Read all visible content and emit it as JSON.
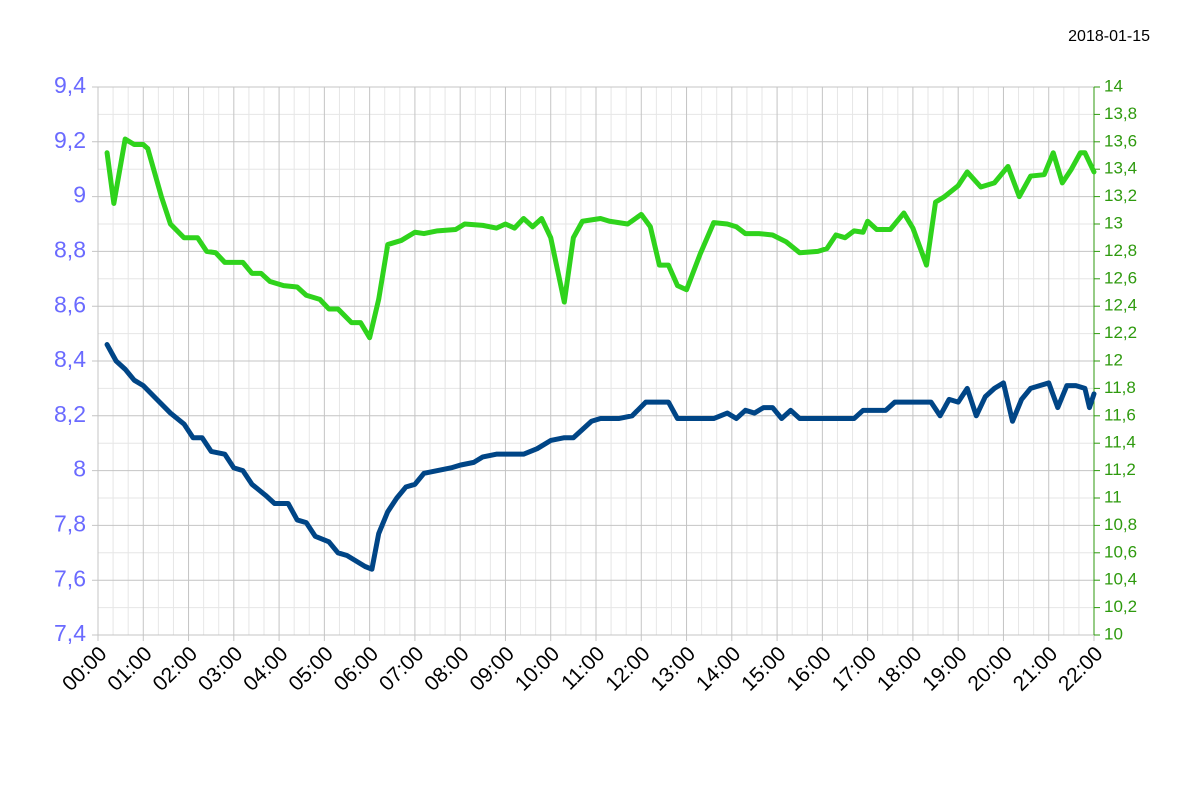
{
  "chart_data": {
    "type": "line",
    "title": "2018-01-15",
    "xlim": [
      0,
      22
    ],
    "xticks": [
      {
        "value": 0,
        "label": "00:00"
      },
      {
        "value": 1,
        "label": "01:00"
      },
      {
        "value": 2,
        "label": "02:00"
      },
      {
        "value": 3,
        "label": "03:00"
      },
      {
        "value": 4,
        "label": "04:00"
      },
      {
        "value": 5,
        "label": "05:00"
      },
      {
        "value": 6,
        "label": "06:00"
      },
      {
        "value": 7,
        "label": "07:00"
      },
      {
        "value": 8,
        "label": "08:00"
      },
      {
        "value": 9,
        "label": "09:00"
      },
      {
        "value": 10,
        "label": "10:00"
      },
      {
        "value": 11,
        "label": "11:00"
      },
      {
        "value": 12,
        "label": "12:00"
      },
      {
        "value": 13,
        "label": "13:00"
      },
      {
        "value": 14,
        "label": "14:00"
      },
      {
        "value": 15,
        "label": "15:00"
      },
      {
        "value": 16,
        "label": "16:00"
      },
      {
        "value": 17,
        "label": "17:00"
      },
      {
        "value": 18,
        "label": "18:00"
      },
      {
        "value": 19,
        "label": "19:00"
      },
      {
        "value": 20,
        "label": "20:00"
      },
      {
        "value": 21,
        "label": "21:00"
      },
      {
        "value": 22,
        "label": "22:00"
      }
    ],
    "ylim": [
      7.4,
      9.4
    ],
    "yticks": [
      {
        "value": 7.4,
        "label": "7,4"
      },
      {
        "value": 7.6,
        "label": "7,6"
      },
      {
        "value": 7.8,
        "label": "7,8"
      },
      8,
      {
        "value": 8.2,
        "label": "8,2"
      },
      {
        "value": 8.4,
        "label": "8,4"
      },
      {
        "value": 8.6,
        "label": "8,6"
      },
      {
        "value": 8.8,
        "label": "8,8"
      },
      9,
      {
        "value": 9.2,
        "label": "9,2"
      },
      {
        "value": 9.4,
        "label": "9,4"
      }
    ],
    "y2lim": [
      10,
      14
    ],
    "y2ticks": [
      10,
      {
        "value": 10.2,
        "label": "10,2"
      },
      {
        "value": 10.4,
        "label": "10,4"
      },
      {
        "value": 10.6,
        "label": "10,6"
      },
      {
        "value": 10.8,
        "label": "10,8"
      },
      11,
      {
        "value": 11.2,
        "label": "11,2"
      },
      {
        "value": 11.4,
        "label": "11,4"
      },
      {
        "value": 11.6,
        "label": "11,6"
      },
      {
        "value": 11.8,
        "label": "11,8"
      },
      12,
      {
        "value": 12.2,
        "label": "12,2"
      },
      {
        "value": 12.4,
        "label": "12,4"
      },
      {
        "value": 12.6,
        "label": "12,6"
      },
      {
        "value": 12.8,
        "label": "12,8"
      },
      13,
      {
        "value": 13.2,
        "label": "13,2"
      },
      {
        "value": 13.4,
        "label": "13,4"
      },
      {
        "value": 13.6,
        "label": "13,6"
      },
      {
        "value": 13.8,
        "label": "13,8"
      },
      14
    ],
    "grid": true,
    "series": [
      {
        "color": "#004586",
        "x": [
          0.2,
          0.4,
          0.6,
          0.8,
          1.0,
          1.3,
          1.6,
          1.9,
          2.1,
          2.3,
          2.5,
          2.8,
          3.0,
          3.2,
          3.4,
          3.7,
          3.9,
          4.2,
          4.4,
          4.6,
          4.8,
          5.1,
          5.3,
          5.5,
          5.7,
          5.9,
          6.05,
          6.2,
          6.4,
          6.6,
          6.8,
          7.0,
          7.2,
          7.5,
          7.8,
          8.0,
          8.3,
          8.5,
          8.8,
          9.0,
          9.4,
          9.7,
          10.0,
          10.3,
          10.5,
          10.7,
          10.9,
          11.1,
          11.5,
          11.8,
          12.1,
          12.4,
          12.6,
          12.8,
          13.2,
          13.6,
          13.9,
          14.1,
          14.3,
          14.5,
          14.7,
          14.9,
          15.1,
          15.3,
          15.5,
          15.9,
          16.3,
          16.7,
          16.9,
          17.2,
          17.4,
          17.6,
          17.9,
          18.2,
          18.4,
          18.6,
          18.8,
          19.0,
          19.2,
          19.4,
          19.6,
          19.8,
          20.0,
          20.2,
          20.4,
          20.6,
          20.8,
          21.0,
          21.2,
          21.4,
          21.6,
          21.8,
          21.9,
          22.0
        ],
        "values": [
          8.46,
          8.4,
          8.37,
          8.33,
          8.31,
          8.26,
          8.21,
          8.17,
          8.12,
          8.12,
          8.07,
          8.06,
          8.01,
          8.0,
          7.95,
          7.91,
          7.88,
          7.88,
          7.82,
          7.81,
          7.76,
          7.74,
          7.7,
          7.69,
          7.67,
          7.65,
          7.64,
          7.77,
          7.85,
          7.9,
          7.94,
          7.95,
          7.99,
          8.0,
          8.01,
          8.02,
          8.03,
          8.05,
          8.06,
          8.06,
          8.06,
          8.08,
          8.11,
          8.12,
          8.12,
          8.15,
          8.18,
          8.19,
          8.19,
          8.2,
          8.25,
          8.25,
          8.25,
          8.19,
          8.19,
          8.19,
          8.21,
          8.19,
          8.22,
          8.21,
          8.23,
          8.23,
          8.19,
          8.22,
          8.19,
          8.19,
          8.19,
          8.19,
          8.22,
          8.22,
          8.22,
          8.25,
          8.25,
          8.25,
          8.25,
          8.2,
          8.26,
          8.25,
          8.3,
          8.2,
          8.27,
          8.3,
          8.32,
          8.18,
          8.26,
          8.3,
          8.31,
          8.32,
          8.23,
          8.31,
          8.31,
          8.3,
          8.23,
          8.28
        ]
      },
      {
        "color": "#2fd31c",
        "axis": "y2",
        "x": [
          0.2,
          0.35,
          0.6,
          0.8,
          1.0,
          1.1,
          1.4,
          1.6,
          1.9,
          2.2,
          2.4,
          2.6,
          2.8,
          3.2,
          3.4,
          3.6,
          3.8,
          4.1,
          4.4,
          4.6,
          4.9,
          5.1,
          5.3,
          5.6,
          5.8,
          6.0,
          6.2,
          6.4,
          6.7,
          7.0,
          7.2,
          7.5,
          7.9,
          8.1,
          8.5,
          8.8,
          9.0,
          9.2,
          9.4,
          9.6,
          9.8,
          10.0,
          10.3,
          10.5,
          10.7,
          11.1,
          11.3,
          11.7,
          12.0,
          12.2,
          12.4,
          12.6,
          12.8,
          13.0,
          13.3,
          13.6,
          13.9,
          14.1,
          14.3,
          14.6,
          14.9,
          15.2,
          15.5,
          15.9,
          16.1,
          16.3,
          16.5,
          16.7,
          16.9,
          17.0,
          17.2,
          17.5,
          17.8,
          18.0,
          18.3,
          18.5,
          18.7,
          19.0,
          19.2,
          19.5,
          19.8,
          20.1,
          20.35,
          20.6,
          20.9,
          21.1,
          21.3,
          21.5,
          21.7,
          21.8,
          22.0
        ],
        "values": [
          13.52,
          13.15,
          13.62,
          13.58,
          13.58,
          13.55,
          13.2,
          13.0,
          12.9,
          12.9,
          12.8,
          12.79,
          12.72,
          12.72,
          12.64,
          12.64,
          12.58,
          12.55,
          12.54,
          12.48,
          12.45,
          12.38,
          12.38,
          12.28,
          12.28,
          12.17,
          12.45,
          12.85,
          12.88,
          12.94,
          12.93,
          12.95,
          12.96,
          13.0,
          12.99,
          12.97,
          13.0,
          12.97,
          13.04,
          12.98,
          13.04,
          12.9,
          12.43,
          12.9,
          13.02,
          13.04,
          13.02,
          13.0,
          13.07,
          12.98,
          12.7,
          12.7,
          12.55,
          12.52,
          12.78,
          13.01,
          13.0,
          12.98,
          12.93,
          12.93,
          12.92,
          12.87,
          12.79,
          12.8,
          12.82,
          12.92,
          12.9,
          12.95,
          12.94,
          13.02,
          12.96,
          12.96,
          13.08,
          12.97,
          12.7,
          13.16,
          13.2,
          13.28,
          13.38,
          13.27,
          13.3,
          13.42,
          13.2,
          13.35,
          13.36,
          13.52,
          13.3,
          13.4,
          13.52,
          13.52,
          13.38
        ]
      }
    ]
  }
}
